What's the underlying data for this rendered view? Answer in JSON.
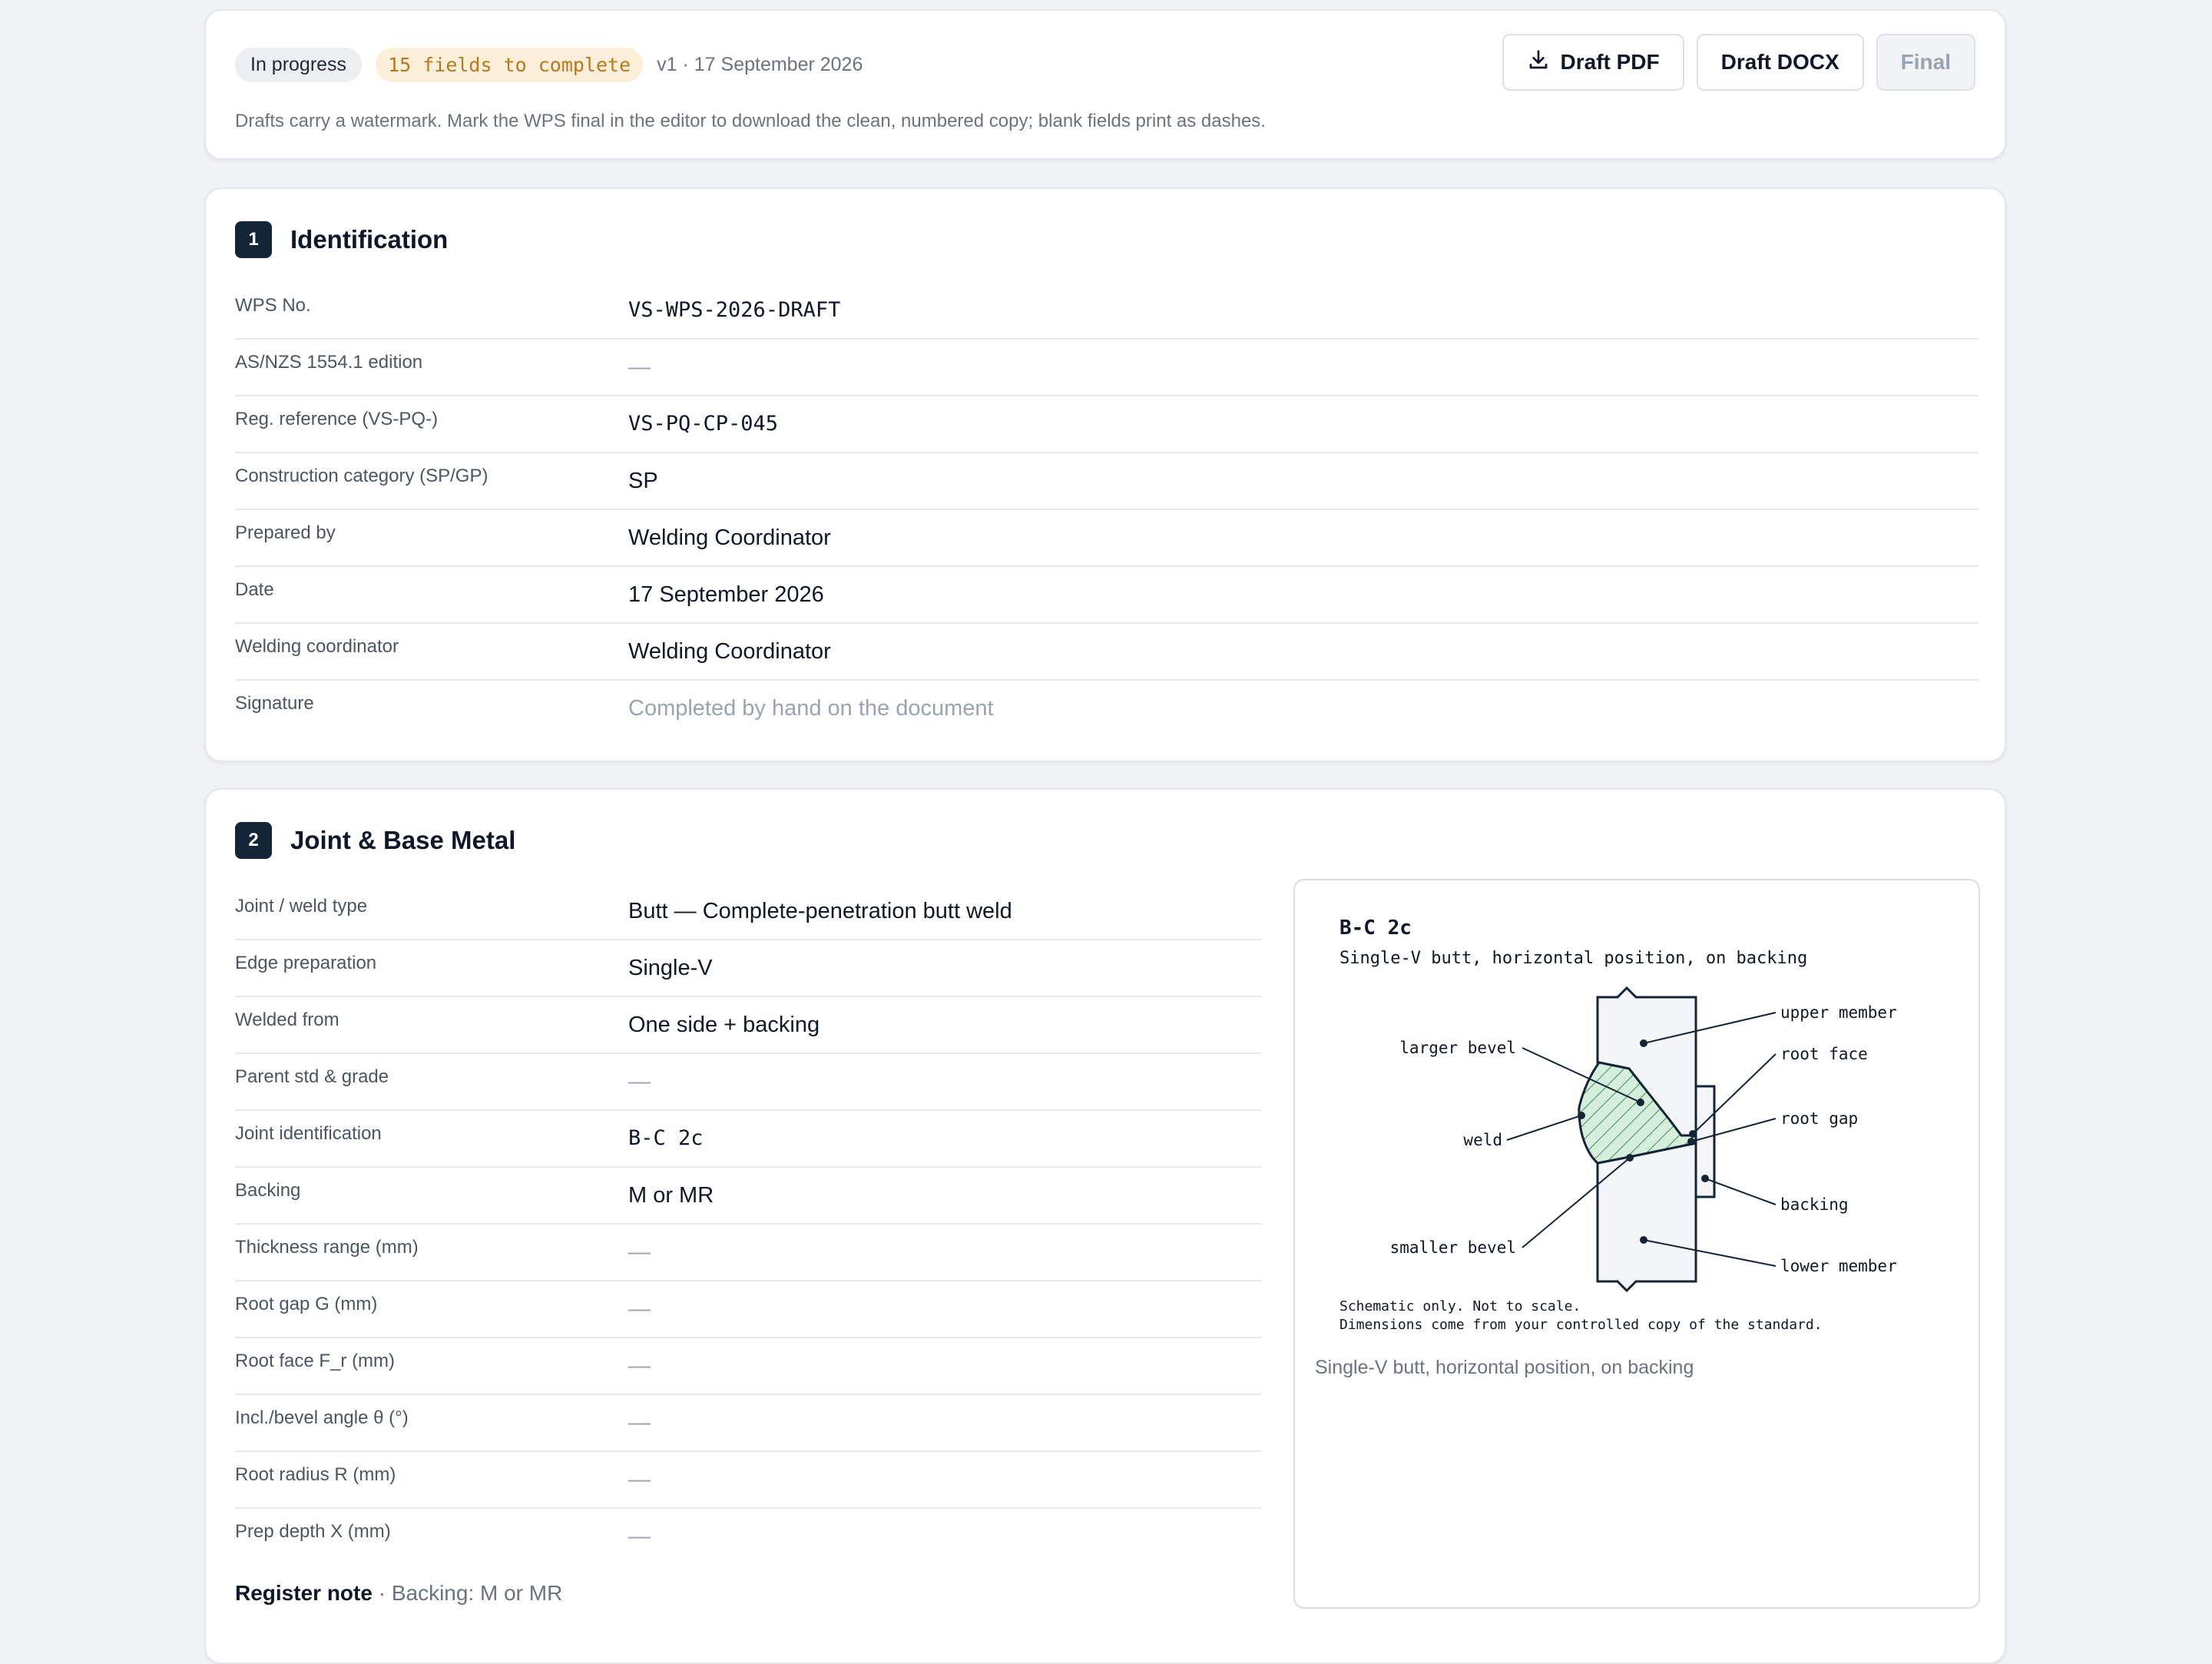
{
  "status": {
    "state": "In progress",
    "fields_badge": "15 fields to complete",
    "version": "v1 · 17 September 2026",
    "hint": "Drafts carry a watermark. Mark the WPS final in the editor to download the clean, numbered copy; blank fields print as dashes."
  },
  "actions": {
    "draft_pdf": "Draft PDF",
    "draft_docx": "Draft DOCX",
    "final": "Final"
  },
  "section1": {
    "num": "1",
    "title": "Identification",
    "rows": [
      {
        "label": "WPS No.",
        "value": "VS-WPS-2026-DRAFT"
      },
      {
        "label": "AS/NZS 1554.1 edition",
        "value": "—"
      },
      {
        "label": "Reg. reference (VS-PQ-)",
        "value": "VS-PQ-CP-045"
      },
      {
        "label": "Construction category (SP/GP)",
        "value": "SP"
      },
      {
        "label": "Prepared by",
        "value": "Welding Coordinator"
      },
      {
        "label": "Date",
        "value": "17 September 2026"
      },
      {
        "label": "Welding coordinator",
        "value": "Welding Coordinator"
      },
      {
        "label": "Signature",
        "value": "Completed by hand on the document"
      }
    ]
  },
  "section2": {
    "num": "2",
    "title": "Joint & Base Metal",
    "rows": [
      {
        "label": "Joint / weld type",
        "value": "Butt — Complete-penetration butt weld"
      },
      {
        "label": "Edge preparation",
        "value": "Single-V"
      },
      {
        "label": "Welded from",
        "value": "One side + backing"
      },
      {
        "label": "Parent std & grade",
        "value": "—"
      },
      {
        "label": "Joint identification",
        "value": "B-C 2c"
      },
      {
        "label": "Backing",
        "value": "M or MR"
      },
      {
        "label": "Thickness range (mm)",
        "value": "—"
      },
      {
        "label": "Root gap G (mm)",
        "value": "—"
      },
      {
        "label": "Root face F_r (mm)",
        "value": "—"
      },
      {
        "label": "Incl./bevel angle θ (°)",
        "value": "—"
      },
      {
        "label": "Root radius R (mm)",
        "value": "—"
      },
      {
        "label": "Prep depth X (mm)",
        "value": "—"
      }
    ],
    "note_label": "Register note",
    "note_sep": " · ",
    "note_text": "Backing: M or MR"
  },
  "figure": {
    "code": "B-C 2c",
    "subtitle": "Single-V butt, horizontal position, on backing",
    "labels": {
      "upper_member": "upper member",
      "root_face": "root face",
      "root_gap": "root gap",
      "backing": "backing",
      "lower_member": "lower member",
      "larger_bevel": "larger bevel",
      "weld": "weld",
      "smaller_bevel": "smaller bevel"
    },
    "footnote1": "Schematic only. Not to scale.",
    "footnote2": "Dimensions come from your controlled copy of the standard.",
    "caption": "Single-V butt, horizontal position, on backing",
    "colors": {
      "weld_fill": "#d6efdc",
      "weld_hatch": "#3f8f55",
      "member_fill": "#f4f5f8",
      "stroke": "#142538"
    }
  }
}
